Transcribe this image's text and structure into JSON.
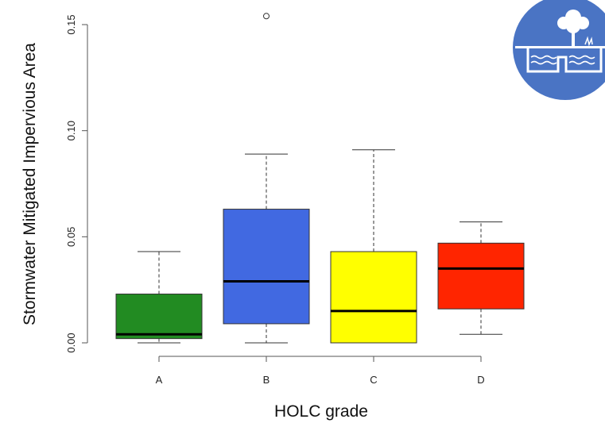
{
  "chart_data": {
    "type": "box",
    "title": "",
    "xlabel": "HOLC grade",
    "ylabel": "Stormwater Mitigated Impervious Area",
    "categories": [
      "A",
      "B",
      "C",
      "D"
    ],
    "ylim": [
      0,
      0.155
    ],
    "yticks": [
      0.0,
      0.05,
      0.1,
      0.15
    ],
    "ytick_labels": [
      "0.00",
      "0.05",
      "0.10",
      "0.15"
    ],
    "grid": false,
    "boxes": [
      {
        "category": "A",
        "min": 0.0,
        "q1": 0.002,
        "median": 0.004,
        "q3": 0.023,
        "max": 0.043,
        "outliers": [],
        "color": "#228B22"
      },
      {
        "category": "B",
        "min": 0.0,
        "q1": 0.009,
        "median": 0.029,
        "q3": 0.063,
        "max": 0.089,
        "outliers": [
          0.154
        ],
        "color": "#4169E1"
      },
      {
        "category": "C",
        "min": 0.0,
        "q1": 0.0,
        "median": 0.015,
        "q3": 0.043,
        "max": 0.091,
        "outliers": [],
        "color": "#FFFF00"
      },
      {
        "category": "D",
        "min": 0.004,
        "q1": 0.016,
        "median": 0.035,
        "q3": 0.047,
        "max": 0.057,
        "outliers": [],
        "color": "#FF2500"
      }
    ]
  },
  "logo": {
    "icon": "stormwater-tree-logo-icon",
    "background_color": "#4A74C4",
    "foreground_color": "#ffffff"
  }
}
